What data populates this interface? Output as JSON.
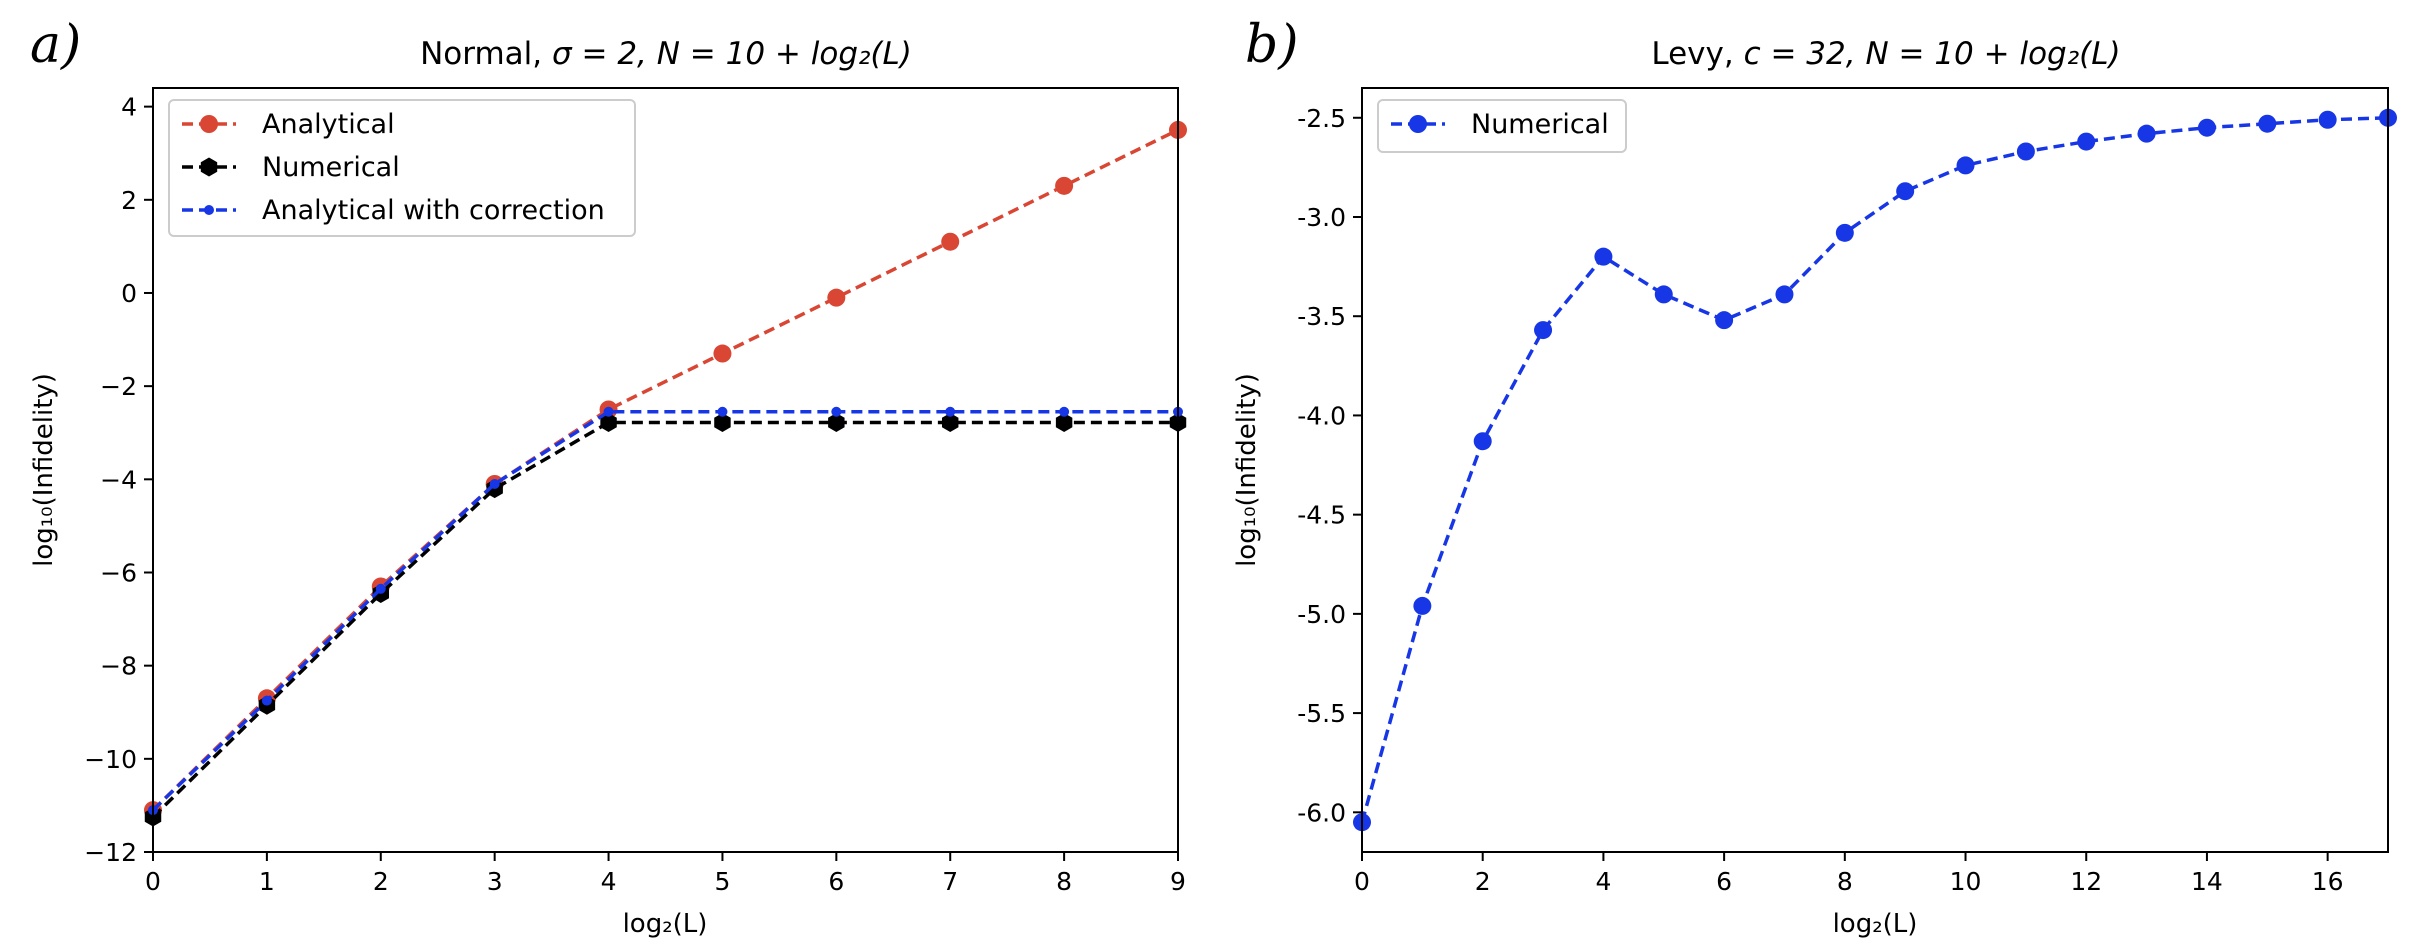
{
  "chart_data": [
    {
      "type": "line",
      "panel_label": "a)",
      "title_prefix": "Normal, ",
      "title_math": "σ = 2, N = 10 + log₂(L)",
      "xlabel": "log₂(L)",
      "ylabel": "log₁₀(Infidelity)",
      "xlim": [
        0,
        9
      ],
      "ylim": [
        -12,
        4.4
      ],
      "xticks": [
        0,
        1,
        2,
        3,
        4,
        5,
        6,
        7,
        8,
        9
      ],
      "yticks": [
        4,
        2,
        0,
        -2,
        -4,
        -6,
        -8,
        -10,
        -12
      ],
      "ytick_labels": [
        "4",
        "2",
        "0",
        "−2",
        "−4",
        "−6",
        "−8",
        "−10",
        "−12"
      ],
      "legend_position": "upper-left",
      "series": [
        {
          "name": "Analytical",
          "color": "#d94633",
          "marker": "circle",
          "x": [
            0,
            1,
            2,
            3,
            4,
            5,
            6,
            7,
            8,
            9
          ],
          "y": [
            -11.1,
            -8.7,
            -6.3,
            -4.1,
            -2.5,
            -1.3,
            -0.1,
            1.1,
            2.3,
            3.5
          ]
        },
        {
          "name": "Numerical",
          "color": "#000000",
          "marker": "hexagon",
          "x": [
            0,
            1,
            2,
            3,
            4,
            5,
            6,
            7,
            8,
            9
          ],
          "y": [
            -11.25,
            -8.85,
            -6.45,
            -4.2,
            -2.78,
            -2.78,
            -2.78,
            -2.78,
            -2.78,
            -2.78
          ]
        },
        {
          "name": "Analytical with correction",
          "color": "#1736e6",
          "marker": "small-dot",
          "x": [
            0,
            1,
            2,
            3,
            4,
            5,
            6,
            7,
            8,
            9
          ],
          "y": [
            -11.1,
            -8.75,
            -6.35,
            -4.1,
            -2.55,
            -2.55,
            -2.55,
            -2.55,
            -2.55,
            -2.55
          ]
        }
      ]
    },
    {
      "type": "line",
      "panel_label": "b)",
      "title_prefix": "Levy, ",
      "title_math": "c = 32, N = 10 + log₂(L)",
      "xlabel": "log₂(L)",
      "ylabel": "log₁₀(Infidelity)",
      "xlim": [
        0,
        17
      ],
      "ylim": [
        -6.2,
        -2.35
      ],
      "xticks": [
        0,
        2,
        4,
        6,
        8,
        10,
        12,
        14,
        16
      ],
      "yticks": [
        -2.5,
        -3.0,
        -3.5,
        -4.0,
        -4.5,
        -5.0,
        -5.5,
        -6.0
      ],
      "ytick_labels": [
        "-2.5",
        "-3.0",
        "-3.5",
        "-4.0",
        "-4.5",
        "-5.0",
        "-5.5",
        "-6.0"
      ],
      "legend_position": "upper-left",
      "series": [
        {
          "name": "Numerical",
          "color": "#1736e6",
          "marker": "circle",
          "x": [
            0,
            1,
            2,
            3,
            4,
            5,
            6,
            7,
            8,
            9,
            10,
            11,
            12,
            13,
            14,
            15,
            16,
            17
          ],
          "y": [
            -6.05,
            -4.96,
            -4.13,
            -3.57,
            -3.2,
            -3.39,
            -3.52,
            -3.39,
            -3.08,
            -2.87,
            -2.74,
            -2.67,
            -2.62,
            -2.58,
            -2.55,
            -2.53,
            -2.51,
            -2.5
          ]
        }
      ]
    }
  ]
}
